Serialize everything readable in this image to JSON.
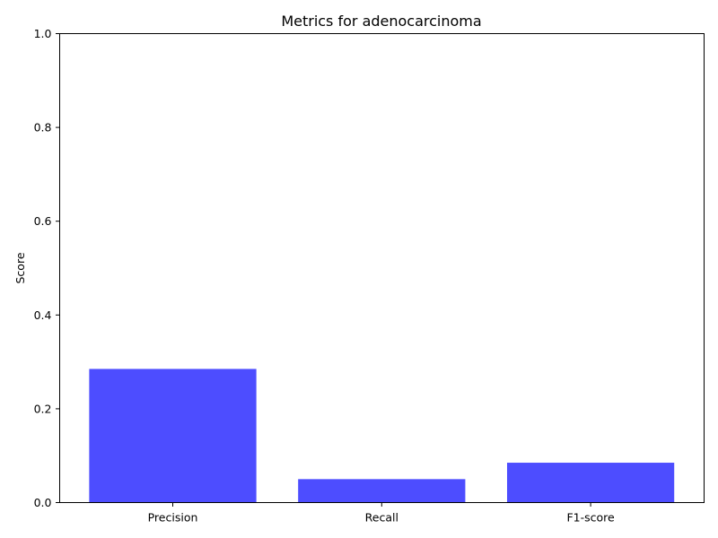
{
  "chart_data": {
    "type": "bar",
    "title": "Metrics for adenocarcinoma",
    "xlabel": "",
    "ylabel": "Score",
    "categories": [
      "Precision",
      "Recall",
      "F1-score"
    ],
    "values": [
      0.285,
      0.05,
      0.085
    ],
    "ylim": [
      0,
      1
    ],
    "yticks": [
      0.0,
      0.2,
      0.4,
      0.6,
      0.8,
      1.0
    ],
    "ytick_labels": [
      "0.0",
      "0.2",
      "0.4",
      "0.6",
      "0.8",
      "1.0"
    ],
    "bar_color": "#4d4dff",
    "grid": false,
    "legend": "none"
  }
}
